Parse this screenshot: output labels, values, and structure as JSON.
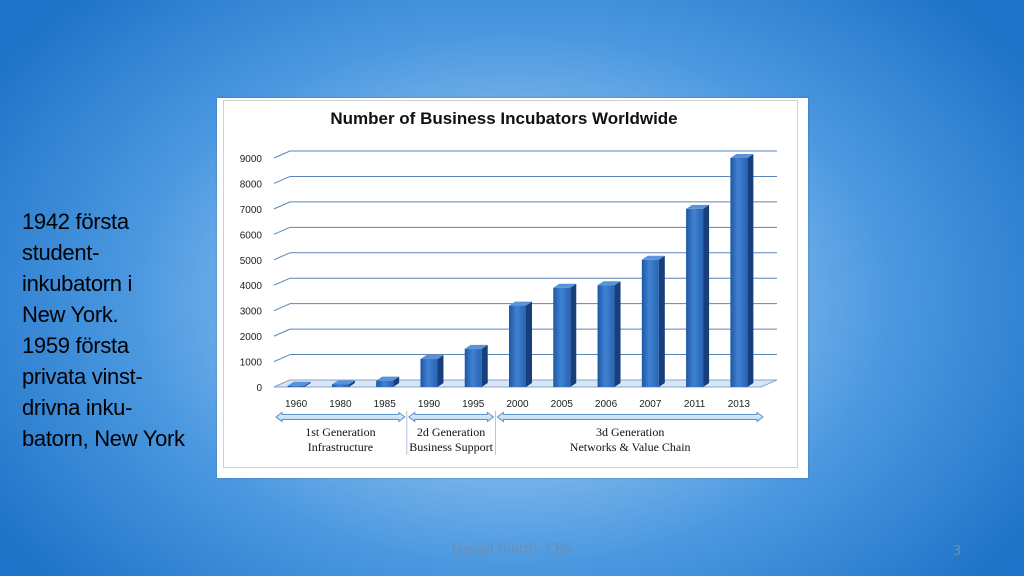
{
  "slide": {
    "side_lines": [
      "1942 första",
      "student-",
      "inkubatorn i",
      "New York.",
      "1959 första",
      "privata vinst-",
      "drivna inku-",
      "batorn, New York"
    ],
    "footer": "Daniel Hjorth, CBS",
    "page_number": "3"
  },
  "chart_data": {
    "type": "bar",
    "title": "Number of Business Incubators Worldwide",
    "categories": [
      "1960",
      "1980",
      "1985",
      "1990",
      "1995",
      "2000",
      "2005",
      "2006",
      "2007",
      "2011",
      "2013"
    ],
    "values": [
      50,
      100,
      250,
      1100,
      1500,
      3200,
      3900,
      4000,
      5000,
      7000,
      9000
    ],
    "yticks": [
      "0",
      "1000",
      "2000",
      "3000",
      "4000",
      "5000",
      "6000",
      "7000",
      "8000",
      "9000"
    ],
    "ylim": [
      0,
      9000
    ],
    "grid": true,
    "bar_color": "#2f6fc0",
    "generations": [
      {
        "line1": "1st Generation",
        "line2": "Infrastructure"
      },
      {
        "line1": "2d Generation",
        "line2": "Business Support"
      },
      {
        "line1": "3d Generation",
        "line2": "Networks & Value Chain"
      }
    ]
  }
}
